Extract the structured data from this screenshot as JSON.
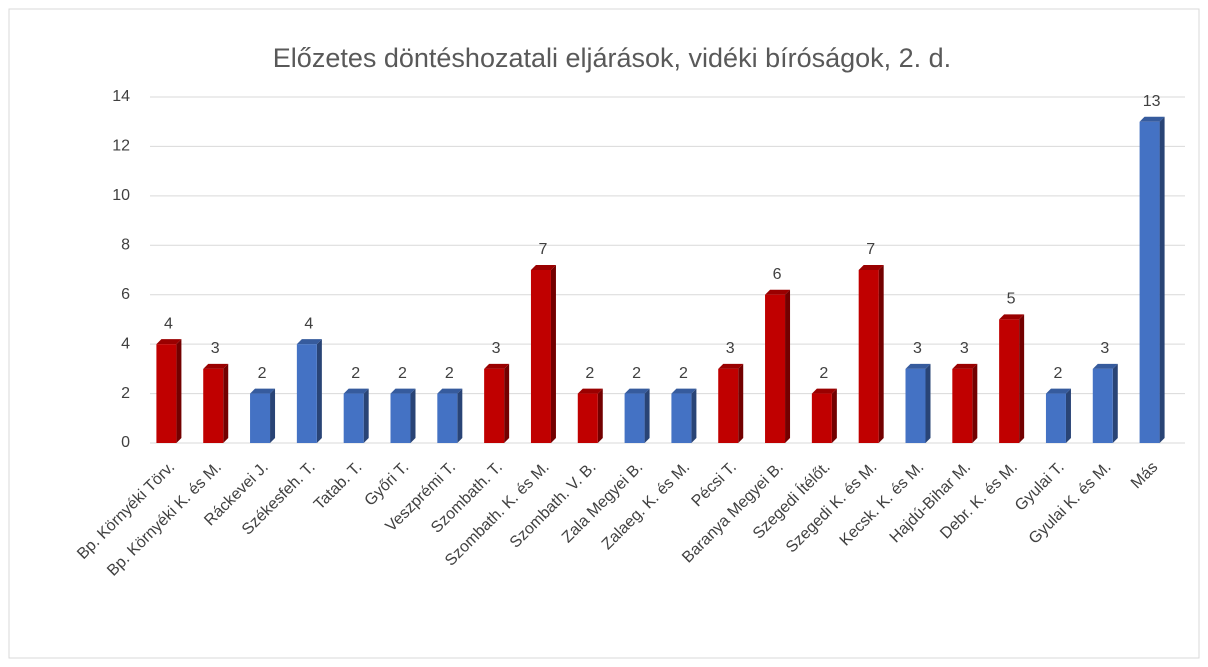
{
  "chart_data": {
    "type": "bar",
    "title": "Előzetes döntéshozatali eljárások, vidéki bíróságok, 2. d.",
    "categories": [
      "Bp. Környéki Törv.",
      "Bp. Környéki K. és M.",
      "Ráckevei J.",
      "Székesfeh. T.",
      "Tatab. T.",
      "Győri T.",
      "Veszprémi T.",
      "Szombath. T.",
      "Szombath. K. és M.",
      "Szombath. V. B.",
      "Zala Megyei B.",
      "Zalaeg. K. és M.",
      "Pécsi T.",
      "Baranya Megyei B.",
      "Szegedi Ítélőt.",
      "Szegedi K. és M.",
      "Kecsk. K. és M.",
      "Hajdú-Bihar M.",
      "Debr. K. és M.",
      "Gyulai T.",
      "Gyulai K. és M.",
      "Más"
    ],
    "values": [
      4,
      3,
      2,
      4,
      2,
      2,
      2,
      3,
      7,
      2,
      2,
      2,
      3,
      6,
      2,
      7,
      3,
      3,
      5,
      2,
      3,
      13
    ],
    "colors": [
      "#c00000",
      "#c00000",
      "#4472c4",
      "#4472c4",
      "#4472c4",
      "#4472c4",
      "#4472c4",
      "#c00000",
      "#c00000",
      "#c00000",
      "#4472c4",
      "#4472c4",
      "#c00000",
      "#c00000",
      "#c00000",
      "#c00000",
      "#4472c4",
      "#c00000",
      "#c00000",
      "#4472c4",
      "#4472c4",
      "#4472c4"
    ],
    "ylim": [
      0,
      14
    ],
    "yticks": [
      0,
      2,
      4,
      6,
      8,
      10,
      12,
      14
    ],
    "grid": true
  }
}
